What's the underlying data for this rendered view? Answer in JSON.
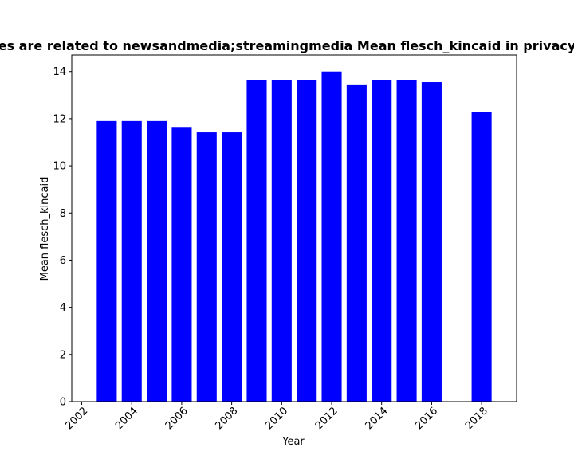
{
  "chart_data": {
    "type": "bar",
    "title": "es are related to newsandmedia;streamingmedia Mean flesch_kincaid in privacy",
    "xlabel": "Year",
    "ylabel": "Mean flesch_kincaid",
    "x": [
      2003,
      2004,
      2005,
      2006,
      2007,
      2008,
      2009,
      2010,
      2011,
      2012,
      2013,
      2014,
      2015,
      2016,
      2018
    ],
    "values": [
      11.9,
      11.9,
      11.9,
      11.65,
      11.42,
      11.42,
      13.65,
      13.65,
      13.65,
      14.0,
      13.42,
      13.62,
      13.65,
      13.55,
      12.3
    ],
    "xlim": [
      2001.6,
      2019.4
    ],
    "ylim": [
      0,
      14.7
    ],
    "xticks": [
      "2002",
      "2004",
      "2006",
      "2008",
      "2010",
      "2012",
      "2014",
      "2016",
      "2018"
    ],
    "yticks": [
      "0",
      "2",
      "4",
      "6",
      "8",
      "10",
      "12",
      "14"
    ],
    "bar_color": "#0000ff",
    "grid": false,
    "legend": "none"
  }
}
